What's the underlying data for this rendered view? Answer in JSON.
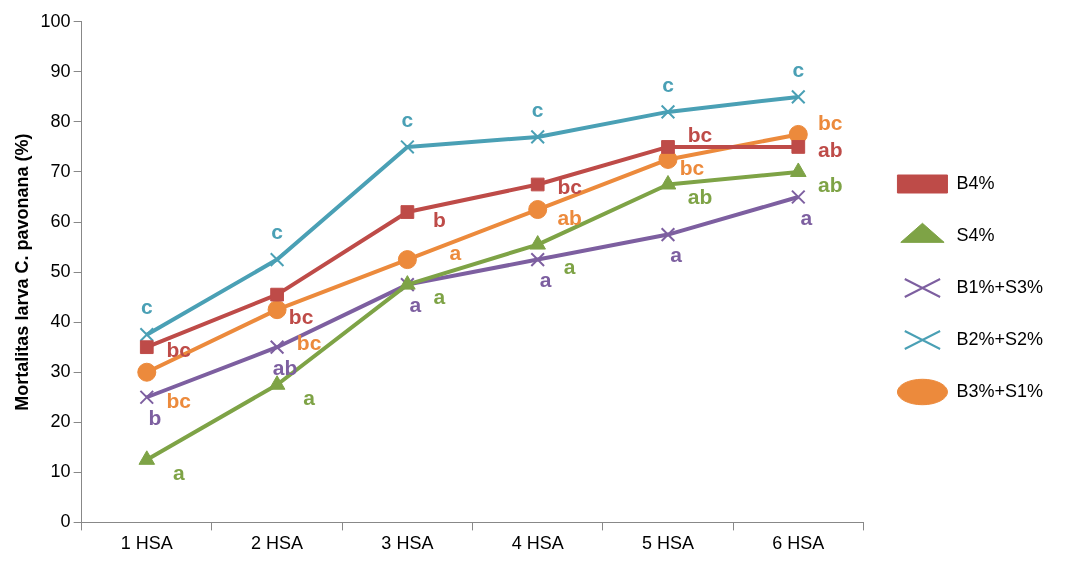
{
  "chart_data": {
    "type": "line",
    "ylabel": "Mortalitas larva C. pavonana (%)",
    "categories": [
      "1 HSA",
      "2 HSA",
      "3 HSA",
      "4 HSA",
      "5 HSA",
      "6 HSA"
    ],
    "ylim": [
      0,
      100
    ],
    "yticks": [
      0,
      10,
      20,
      30,
      40,
      50,
      60,
      70,
      80,
      90,
      100
    ],
    "grid": false,
    "legend": "right",
    "line_style": "solid",
    "series": [
      {
        "name": "B4%",
        "color": "#be4b48",
        "marker": "square",
        "values": [
          35,
          45.5,
          62,
          67.5,
          75,
          75
        ],
        "value_labels": [
          "bc",
          "bc",
          "b",
          "bc",
          "bc",
          "ab"
        ]
      },
      {
        "name": "S4%",
        "color": "#7ea346",
        "marker": "triangle",
        "values": [
          12.5,
          27.5,
          47.5,
          55.5,
          67.5,
          70
        ],
        "value_labels": [
          "a",
          "a",
          "a",
          "a",
          "ab",
          "ab"
        ]
      },
      {
        "name": "B1%+S3%",
        "color": "#7d5fa0",
        "marker": "cross",
        "values": [
          25,
          35,
          47.5,
          52.5,
          57.5,
          65
        ],
        "value_labels": [
          "b",
          "ab",
          "a",
          "a",
          "a",
          "a"
        ]
      },
      {
        "name": "B2%+S2%",
        "color": "#4aa0b5",
        "marker": "cross",
        "values": [
          37.5,
          52.5,
          75,
          77,
          82,
          85
        ],
        "value_labels": [
          "c",
          "c",
          "c",
          "c",
          "c",
          "c"
        ]
      },
      {
        "name": "B3%+S1%",
        "color": "#ec8a3c",
        "marker": "circle",
        "values": [
          30,
          42.5,
          52.5,
          62.5,
          72.5,
          77.5
        ],
        "value_labels": [
          "bc",
          "bc",
          "a",
          "ab",
          "bc",
          "bc"
        ]
      }
    ]
  }
}
